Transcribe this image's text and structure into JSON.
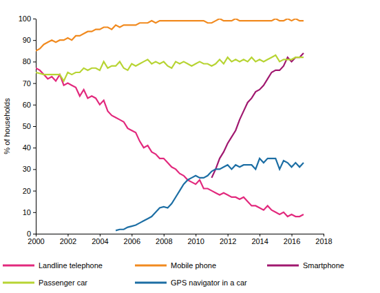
{
  "chart_data": {
    "type": "line",
    "y_label": "% of households",
    "x": [
      2000,
      2000.25,
      2000.5,
      2000.75,
      2001,
      2001.25,
      2001.5,
      2001.75,
      2002,
      2002.25,
      2002.5,
      2002.75,
      2003,
      2003.25,
      2003.5,
      2003.75,
      2004,
      2004.25,
      2004.5,
      2004.75,
      2005,
      2005.25,
      2005.5,
      2005.75,
      2006,
      2006.25,
      2006.5,
      2006.75,
      2007,
      2007.25,
      2007.5,
      2007.75,
      2008,
      2008.25,
      2008.5,
      2008.75,
      2009,
      2009.25,
      2009.5,
      2009.75,
      2010,
      2010.25,
      2010.5,
      2010.75,
      2011,
      2011.25,
      2011.5,
      2011.75,
      2012,
      2012.25,
      2012.5,
      2012.75,
      2013,
      2013.25,
      2013.5,
      2013.75,
      2014,
      2014.25,
      2014.5,
      2014.75,
      2015,
      2015.25,
      2015.5,
      2015.75,
      2016,
      2016.25,
      2016.5,
      2016.75
    ],
    "series": [
      {
        "name": "Landline telephone",
        "color": "#e2297d",
        "values": [
          77,
          76,
          74,
          72,
          73,
          71,
          74,
          69,
          70,
          69,
          68,
          64,
          67,
          63,
          64,
          63,
          60,
          62,
          57,
          55,
          54,
          53,
          52,
          49,
          48,
          47,
          43,
          40,
          41,
          38,
          37,
          35,
          35,
          33,
          31,
          30,
          28,
          27,
          25,
          24,
          23,
          25,
          21,
          21,
          20,
          19,
          18,
          19,
          18,
          17,
          17,
          16,
          17,
          15,
          13,
          13,
          12,
          11,
          13,
          11,
          10,
          9,
          10,
          8,
          9,
          8,
          8,
          9
        ]
      },
      {
        "name": "Mobile phone",
        "color": "#f18a1f",
        "values": [
          85,
          86,
          88,
          89,
          90,
          89,
          90,
          90,
          91,
          90,
          92,
          92,
          93,
          94,
          94,
          95,
          95,
          96,
          96,
          95,
          97,
          96,
          97,
          97,
          97,
          97,
          98,
          98,
          98,
          99,
          98,
          99,
          99,
          99,
          99,
          99,
          99,
          99,
          99,
          99,
          99,
          99,
          99,
          98,
          98,
          99,
          100,
          99,
          99,
          99,
          100,
          99,
          99,
          99,
          99,
          99,
          99,
          99,
          99,
          99,
          100,
          99,
          99,
          100,
          99,
          100,
          99,
          99
        ]
      },
      {
        "name": "Smartphone",
        "color": "#a0186f",
        "values": [
          null,
          null,
          null,
          null,
          null,
          null,
          null,
          null,
          null,
          null,
          null,
          null,
          null,
          null,
          null,
          null,
          null,
          null,
          null,
          null,
          null,
          null,
          null,
          null,
          null,
          null,
          null,
          null,
          null,
          null,
          null,
          null,
          null,
          null,
          null,
          null,
          null,
          null,
          null,
          null,
          null,
          null,
          null,
          null,
          26,
          30,
          35,
          38,
          42,
          45,
          48,
          53,
          57,
          61,
          63,
          66,
          67,
          69,
          72,
          75,
          76,
          76,
          78,
          82,
          80,
          82,
          82,
          84
        ]
      },
      {
        "name": "Passenger car",
        "color": "#b7d433",
        "values": [
          75,
          74.5,
          74,
          74,
          74,
          74,
          74,
          71,
          75,
          74,
          75,
          75,
          77,
          76,
          77,
          77,
          76,
          80,
          77,
          78,
          78,
          80,
          77,
          76,
          79,
          78,
          79,
          80,
          81,
          79,
          80,
          79,
          80,
          78,
          77,
          80,
          79,
          80,
          79,
          78,
          79,
          80,
          79,
          79,
          78,
          79,
          81,
          79,
          82,
          80,
          81,
          80,
          81,
          80,
          82,
          80,
          81,
          80,
          81,
          82,
          83,
          80,
          81,
          81,
          81,
          82,
          82,
          82
        ]
      },
      {
        "name": "GPS navigator in a car",
        "color": "#1c6ea4",
        "values": [
          null,
          null,
          null,
          null,
          null,
          null,
          null,
          null,
          null,
          null,
          null,
          null,
          null,
          null,
          null,
          null,
          null,
          null,
          null,
          null,
          1.5,
          2,
          2,
          3,
          3.5,
          4,
          5,
          6,
          7,
          8,
          10,
          12,
          12.5,
          12,
          14,
          17,
          20,
          23,
          25,
          26,
          27,
          26,
          26,
          27,
          29,
          30,
          30,
          31,
          32,
          30,
          32,
          31,
          32,
          32,
          32,
          30,
          35,
          33,
          35,
          35,
          35,
          30,
          34,
          33,
          31,
          33,
          31,
          33
        ]
      }
    ],
    "xlim": [
      2000,
      2018
    ],
    "xticks": [
      2000,
      2002,
      2004,
      2006,
      2008,
      2010,
      2012,
      2014,
      2016,
      2018
    ],
    "ylim": [
      0,
      100
    ],
    "yticks": [
      0,
      10,
      20,
      30,
      40,
      50,
      60,
      70,
      80,
      90,
      100
    ],
    "grid": false,
    "legend": "bottom"
  }
}
